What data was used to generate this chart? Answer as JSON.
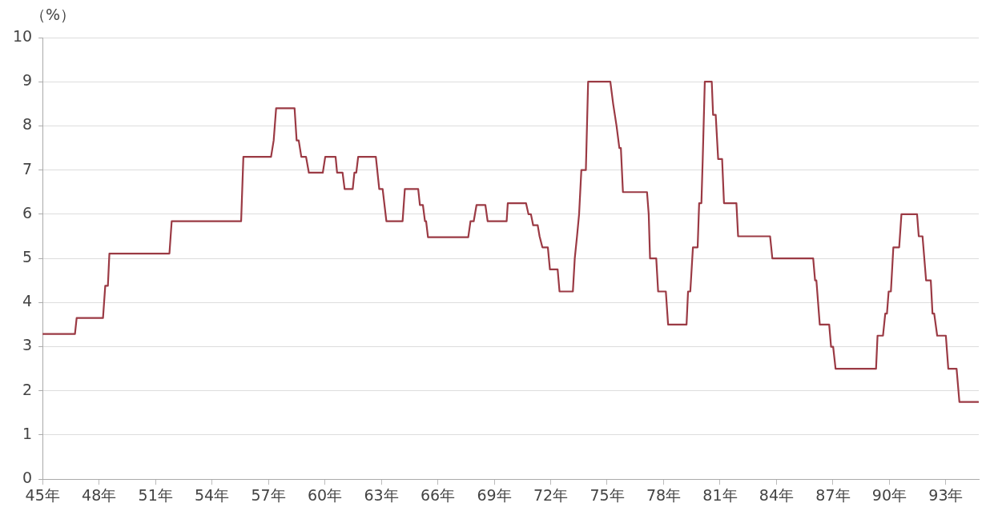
{
  "chart_data": {
    "type": "line",
    "ylabel": "（%）",
    "xlim": [
      45,
      94.75
    ],
    "xticks": [
      {
        "value": 45,
        "label": "45年"
      },
      {
        "value": 48,
        "label": "48年"
      },
      {
        "value": 51,
        "label": "51年"
      },
      {
        "value": 54,
        "label": "54年"
      },
      {
        "value": 57,
        "label": "57年"
      },
      {
        "value": 60,
        "label": "60年"
      },
      {
        "value": 63,
        "label": "63年"
      },
      {
        "value": 66,
        "label": "66年"
      },
      {
        "value": 69,
        "label": "69年"
      },
      {
        "value": 72,
        "label": "72年"
      },
      {
        "value": 75,
        "label": "75年"
      },
      {
        "value": 78,
        "label": "78年"
      },
      {
        "value": 81,
        "label": "81年"
      },
      {
        "value": 84,
        "label": "84年"
      },
      {
        "value": 87,
        "label": "87年"
      },
      {
        "value": 90,
        "label": "90年"
      },
      {
        "value": 93,
        "label": "93年"
      }
    ],
    "ylim": [
      0,
      10
    ],
    "yticks": [
      0,
      1,
      2,
      3,
      4,
      5,
      6,
      7,
      8,
      9,
      10
    ],
    "grid": "y",
    "legend": false,
    "marker": "none",
    "line_style": "solid",
    "series": [
      {
        "color": "#9b3a44",
        "x": [
          45,
          46.72,
          46.81,
          48.21,
          48.33,
          48.47,
          48.55,
          51.74,
          51.86,
          55.55,
          55.67,
          57.14,
          57.28,
          57.41,
          58.39,
          58.5,
          58.61,
          58.75,
          59.0,
          59.15,
          59.89,
          60.02,
          60.57,
          60.65,
          60.94,
          61.05,
          61.48,
          61.57,
          61.67,
          61.77,
          62.71,
          62.89,
          63.07,
          63.27,
          64.13,
          64.25,
          64.96,
          65.05,
          65.21,
          65.32,
          65.38,
          65.48,
          67.62,
          67.74,
          67.91,
          68.06,
          68.53,
          68.65,
          69.66,
          69.72,
          70.69,
          70.82,
          70.95,
          71.07,
          71.31,
          71.41,
          71.56,
          71.85,
          71.96,
          72.37,
          72.47,
          73.18,
          73.28,
          73.4,
          73.51,
          73.63,
          73.87,
          73.99,
          75.17,
          75.32,
          75.5,
          75.65,
          75.73,
          75.84,
          77.12,
          77.21,
          77.28,
          77.61,
          77.71,
          78.12,
          78.24,
          79.22,
          79.3,
          79.42,
          79.56,
          79.81,
          79.89,
          80.01,
          80.08,
          80.19,
          80.56,
          80.63,
          80.77,
          80.9,
          81.11,
          81.21,
          81.87,
          81.96,
          83.66,
          83.78,
          85.95,
          86.05,
          86.12,
          86.3,
          86.8,
          86.9,
          87.01,
          87.14,
          89.29,
          89.37,
          89.66,
          89.78,
          89.87,
          89.96,
          90.08,
          90.21,
          90.52,
          90.64,
          91.47,
          91.56,
          91.76,
          91.95,
          92.2,
          92.29,
          92.38,
          92.54,
          93.0,
          93.13,
          93.57,
          93.72,
          94.72
        ],
        "values": [
          3.29,
          3.29,
          3.65,
          3.65,
          4.38,
          4.38,
          5.11,
          5.11,
          5.84,
          5.84,
          7.3,
          7.3,
          7.67,
          8.4,
          8.4,
          7.67,
          7.67,
          7.3,
          7.3,
          6.94,
          6.94,
          7.3,
          7.3,
          6.94,
          6.94,
          6.57,
          6.57,
          6.94,
          6.94,
          7.3,
          7.3,
          6.57,
          6.57,
          5.84,
          5.84,
          6.57,
          6.57,
          6.21,
          6.21,
          5.84,
          5.84,
          5.48,
          5.48,
          5.84,
          5.84,
          6.21,
          6.21,
          5.84,
          5.84,
          6.25,
          6.25,
          6.0,
          6.0,
          5.75,
          5.75,
          5.5,
          5.25,
          5.25,
          4.75,
          4.75,
          4.25,
          4.25,
          5.0,
          5.5,
          6.0,
          7.0,
          7.0,
          9.0,
          9.0,
          8.5,
          8.0,
          7.5,
          7.5,
          6.5,
          6.5,
          6.0,
          5.0,
          5.0,
          4.25,
          4.25,
          3.5,
          3.5,
          4.25,
          4.25,
          5.25,
          5.25,
          6.25,
          6.25,
          7.25,
          9.0,
          9.0,
          8.25,
          8.25,
          7.25,
          7.25,
          6.25,
          6.25,
          5.5,
          5.5,
          5.0,
          5.0,
          4.5,
          4.5,
          3.5,
          3.5,
          3.0,
          3.0,
          2.5,
          2.5,
          3.25,
          3.25,
          3.75,
          3.75,
          4.25,
          4.25,
          5.25,
          5.25,
          6.0,
          6.0,
          5.5,
          5.5,
          4.5,
          4.5,
          3.75,
          3.75,
          3.25,
          3.25,
          2.5,
          2.5,
          1.75,
          1.75
        ]
      }
    ]
  }
}
